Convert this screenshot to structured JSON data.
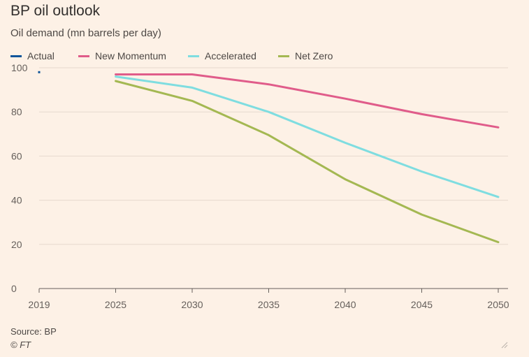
{
  "header": {
    "title": "BP oil outlook",
    "subtitle": "Oil demand (mn barrels per day)"
  },
  "footer": {
    "source": "Source: BP",
    "copyright": "© FT"
  },
  "chart_data": {
    "type": "line",
    "title": "BP oil outlook",
    "ylabel": "Oil demand (mn barrels per day)",
    "xlabel": "",
    "x": [
      2019,
      2025,
      2030,
      2035,
      2040,
      2045,
      2050
    ],
    "xticks": [
      "2019",
      "2025",
      "2030",
      "2035",
      "2040",
      "2045",
      "2050"
    ],
    "yticks": [
      "0",
      "20",
      "40",
      "60",
      "80",
      "100"
    ],
    "ylim": [
      0,
      100
    ],
    "grid": true,
    "legend_position": "top",
    "series": [
      {
        "name": "Actual",
        "color": "#0f5499",
        "points": [
          [
            2019,
            98
          ]
        ]
      },
      {
        "name": "New Momentum",
        "color": "#e05c8a",
        "points": [
          [
            2025,
            97
          ],
          [
            2030,
            97
          ],
          [
            2035,
            92.5
          ],
          [
            2040,
            86
          ],
          [
            2045,
            79
          ],
          [
            2050,
            73
          ]
        ]
      },
      {
        "name": "Accelerated",
        "color": "#7fdde0",
        "points": [
          [
            2025,
            96
          ],
          [
            2030,
            91
          ],
          [
            2035,
            80
          ],
          [
            2040,
            66
          ],
          [
            2045,
            53
          ],
          [
            2050,
            41.5
          ]
        ]
      },
      {
        "name": "Net Zero",
        "color": "#a4b852",
        "points": [
          [
            2025,
            94
          ],
          [
            2030,
            85
          ],
          [
            2035,
            69.5
          ],
          [
            2040,
            49.5
          ],
          [
            2045,
            33.5
          ],
          [
            2050,
            21
          ]
        ]
      }
    ]
  }
}
